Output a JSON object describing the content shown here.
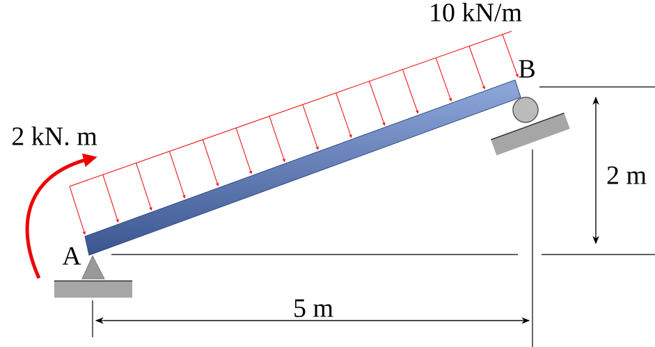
{
  "load": {
    "label": "10 kN/m"
  },
  "points": {
    "a": "A",
    "b": "B"
  },
  "moment": {
    "label": "2 kN. m"
  },
  "dimensions": {
    "height": "2 m",
    "span": "5 m"
  }
}
